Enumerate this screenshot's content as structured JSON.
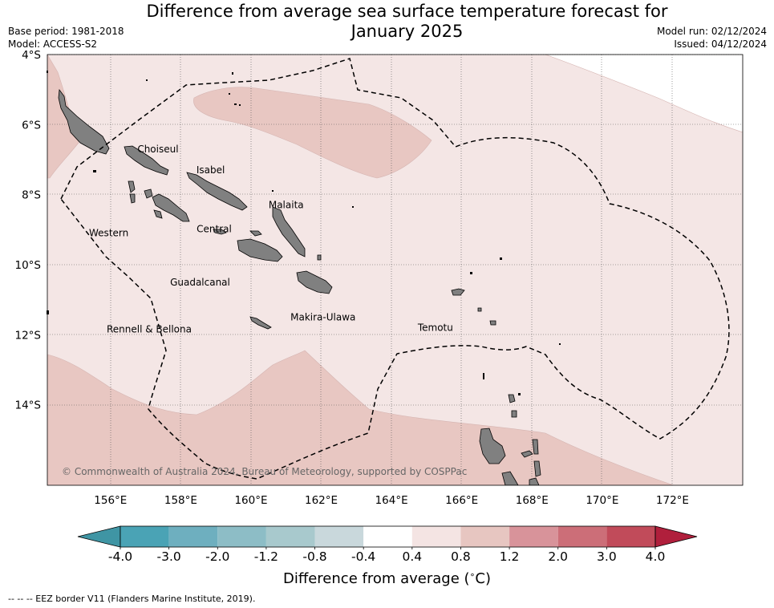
{
  "title": {
    "line1": "Difference from average sea surface temperature forecast for",
    "line2": "January 2025"
  },
  "metadata": {
    "base_period": "Base period: 1981-2018",
    "model": "Model: ACCESS-S2",
    "model_run": "Model run: 02/12/2024",
    "issued": "Issued: 04/12/2024"
  },
  "map": {
    "region": "Solomon Islands EEZ",
    "lon_range": [
      154.2,
      174
    ],
    "lat_range": [
      -16.3,
      -4
    ],
    "lat_ticks": [
      {
        "value": -4,
        "label": "4°S"
      },
      {
        "value": -6,
        "label": "6°S"
      },
      {
        "value": -8,
        "label": "8°S"
      },
      {
        "value": -10,
        "label": "10°S"
      },
      {
        "value": -12,
        "label": "12°S"
      },
      {
        "value": -14,
        "label": "14°S"
      }
    ],
    "lon_ticks": [
      {
        "value": 156,
        "label": "156°E"
      },
      {
        "value": 158,
        "label": "158°E"
      },
      {
        "value": 160,
        "label": "160°E"
      },
      {
        "value": 162,
        "label": "162°E"
      },
      {
        "value": 164,
        "label": "164°E"
      },
      {
        "value": 166,
        "label": "166°E"
      },
      {
        "value": 168,
        "label": "168°E"
      },
      {
        "value": 170,
        "label": "170°E"
      },
      {
        "value": 172,
        "label": "172°E"
      }
    ],
    "gridlines": true,
    "province_labels": [
      {
        "name": "Choiseul",
        "lon": 157.35,
        "lat": -6.7
      },
      {
        "name": "Isabel",
        "lon": 158.85,
        "lat": -7.3
      },
      {
        "name": "Malaita",
        "lon": 161.0,
        "lat": -8.3
      },
      {
        "name": "Western",
        "lon": 155.95,
        "lat": -9.1
      },
      {
        "name": "Central",
        "lon": 158.95,
        "lat": -8.98
      },
      {
        "name": "Guadalcanal",
        "lon": 158.55,
        "lat": -10.5
      },
      {
        "name": "Makira-Ulawa",
        "lon": 162.05,
        "lat": -11.5
      },
      {
        "name": "Temotu",
        "lon": 165.25,
        "lat": -11.8
      },
      {
        "name": "Rennell & Bellona",
        "lon": 157.1,
        "lat": -11.85
      }
    ],
    "copyright": "© Commonwealth of Australia 2024, Bureau of Meteorology, supported by COSPPac"
  },
  "chart_data": {
    "type": "heatmap",
    "variable": "SST anomaly forecast (°C)",
    "dominant_category": "0.4 to 0.8",
    "warmer_category": "0.8 to 1.2",
    "warm_regions": [
      "north-west corner near Bougainville",
      "band north of Isabel/Choiseul",
      "southern band south of 13°S"
    ],
    "colorbar": {
      "label": "Difference from average (",
      "label_unit": "∘",
      "label_end": "C)",
      "ticks": [
        "-4.0",
        "-3.0",
        "-2.0",
        "-1.2",
        "-0.8",
        "-0.4",
        "0.4",
        "0.8",
        "1.2",
        "2.0",
        "3.0",
        "4.0"
      ],
      "colors": [
        "#3f95a4",
        "#4aa3b5",
        "#6eafbf",
        "#8dbdc6",
        "#a8c9cd",
        "#c9d8dc",
        "#ffffff",
        "#f4e4e3",
        "#e7c6c1",
        "#d8939a",
        "#cc6e78",
        "#c14b5a",
        "#b01f3c"
      ]
    }
  },
  "footnote": "--  --  -- EEZ border V11 (Flanders Marine Institute, 2019)."
}
